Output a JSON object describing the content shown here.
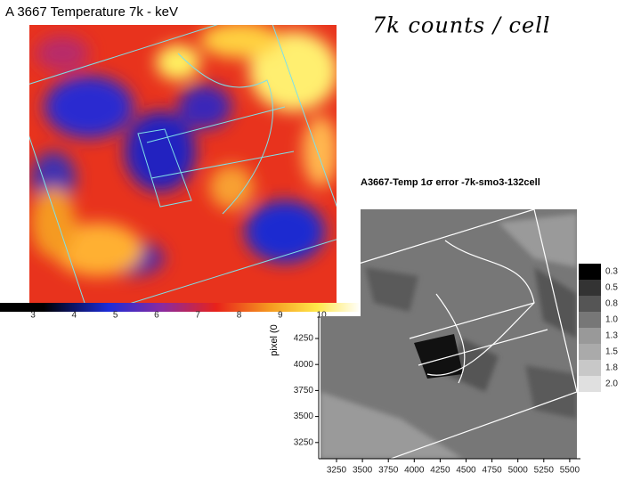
{
  "slide": {
    "title": "A 3667 Temperature 7k - keV",
    "annotation": "7k counts / cell"
  },
  "temperature_map": {
    "colorbar_labels": [
      3,
      4,
      5,
      6,
      7,
      8,
      9,
      10
    ]
  },
  "error_map": {
    "title": "A3667-Temp 1σ error -7k-smo3-132cell",
    "y_axis_label": "pixel (0",
    "y_ticks": [
      4250,
      4000,
      3750,
      3500,
      3250
    ],
    "x_ticks": [
      3250,
      3500,
      3750,
      4000,
      4250,
      4500,
      4750,
      5000,
      5250,
      5500
    ],
    "legend": [
      "0.3",
      "0.5",
      "0.8",
      "1.0",
      "1.3",
      "1.5",
      "1.8",
      "2.0"
    ]
  }
}
